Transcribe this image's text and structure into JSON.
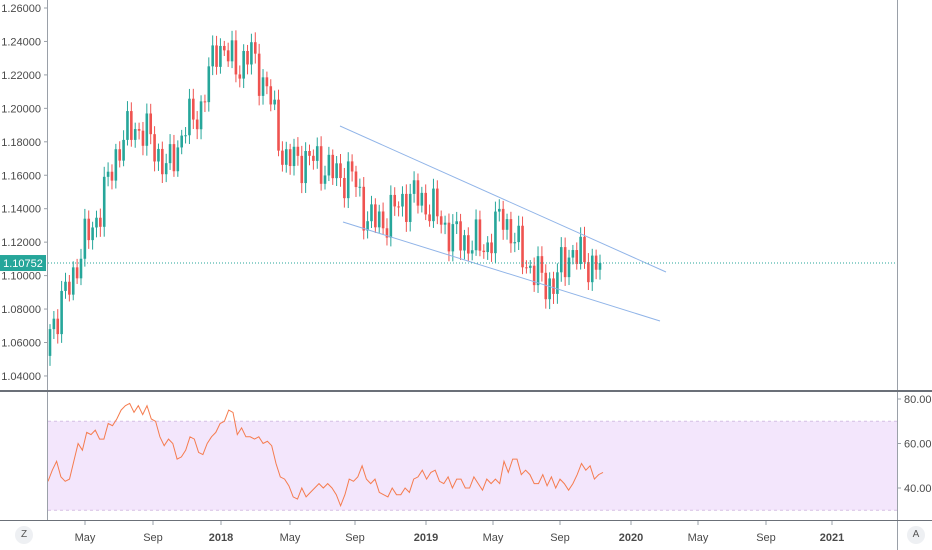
{
  "chart_data": {
    "type": "candlestick",
    "interval": "weekly",
    "start": "2017-03",
    "monthly_closes": [
      1.068,
      1.09,
      1.118,
      1.14,
      1.175,
      1.19,
      1.182,
      1.162,
      1.188,
      1.2,
      1.24,
      1.225,
      1.232,
      1.21,
      1.168,
      1.17,
      1.168,
      1.16,
      1.16,
      1.132,
      1.133,
      1.145,
      1.147,
      1.137,
      1.124,
      1.12,
      1.117,
      1.137,
      1.114,
      1.1,
      1.094,
      1.115,
      1.1075
    ],
    "first_open": 1.052,
    "price_axis": {
      "min": 1.03,
      "max": 1.265,
      "ticks": [
        "1.26000",
        "1.24000",
        "1.22000",
        "1.20000",
        "1.18000",
        "1.16000",
        "1.14000",
        "1.12000",
        "1.10000",
        "1.08000",
        "1.06000",
        "1.04000"
      ]
    },
    "last_price": "1.10752",
    "x_ticks": [
      {
        "label": "May",
        "bold": false
      },
      {
        "label": "Sep",
        "bold": false
      },
      {
        "label": "2018",
        "bold": true
      },
      {
        "label": "May",
        "bold": false
      },
      {
        "label": "Sep",
        "bold": false
      },
      {
        "label": "2019",
        "bold": true
      },
      {
        "label": "May",
        "bold": false
      },
      {
        "label": "Sep",
        "bold": false
      },
      {
        "label": "2020",
        "bold": true
      },
      {
        "label": "May",
        "bold": false
      },
      {
        "label": "Sep",
        "bold": false
      },
      {
        "label": "2021",
        "bold": true
      }
    ],
    "rsi": {
      "ticks": [
        "80.00",
        "60.00",
        "40.00"
      ],
      "upper": 70,
      "lower": 30,
      "values": [
        43,
        48,
        52,
        45,
        43,
        44,
        52,
        60,
        57,
        65,
        64,
        66,
        62,
        62,
        69,
        68,
        71,
        75,
        77,
        78,
        74,
        77,
        73,
        77,
        71,
        70,
        63,
        59,
        62,
        60,
        53,
        54,
        57,
        63,
        62,
        56,
        55,
        60,
        63,
        65,
        69,
        70,
        75,
        74,
        64,
        67,
        63,
        63,
        62,
        63,
        60,
        61,
        59,
        51,
        45,
        44,
        41,
        36,
        35,
        40,
        36,
        38,
        40,
        42,
        40,
        42,
        40,
        37,
        32,
        37,
        44,
        43,
        45,
        50,
        44,
        42,
        44,
        38,
        37,
        36,
        40,
        37,
        37,
        40,
        38,
        44,
        45,
        48,
        44,
        47,
        48,
        43,
        42,
        45,
        40,
        44,
        44,
        40,
        40,
        45,
        42,
        39,
        44,
        42,
        44,
        42,
        52,
        47,
        53,
        53,
        46,
        48,
        46,
        42,
        42,
        46,
        41,
        45,
        40,
        44,
        42,
        39,
        42,
        46,
        51,
        48,
        50,
        44,
        46,
        47
      ]
    },
    "colors": {
      "up": "#26a69a",
      "down": "#ef5350",
      "rsi": "#f57c4f",
      "band": "#f3e6fc",
      "channel": "#90b4e8",
      "price_line": "#26a69a"
    }
  },
  "corner_left": "Z",
  "corner_right": "A"
}
